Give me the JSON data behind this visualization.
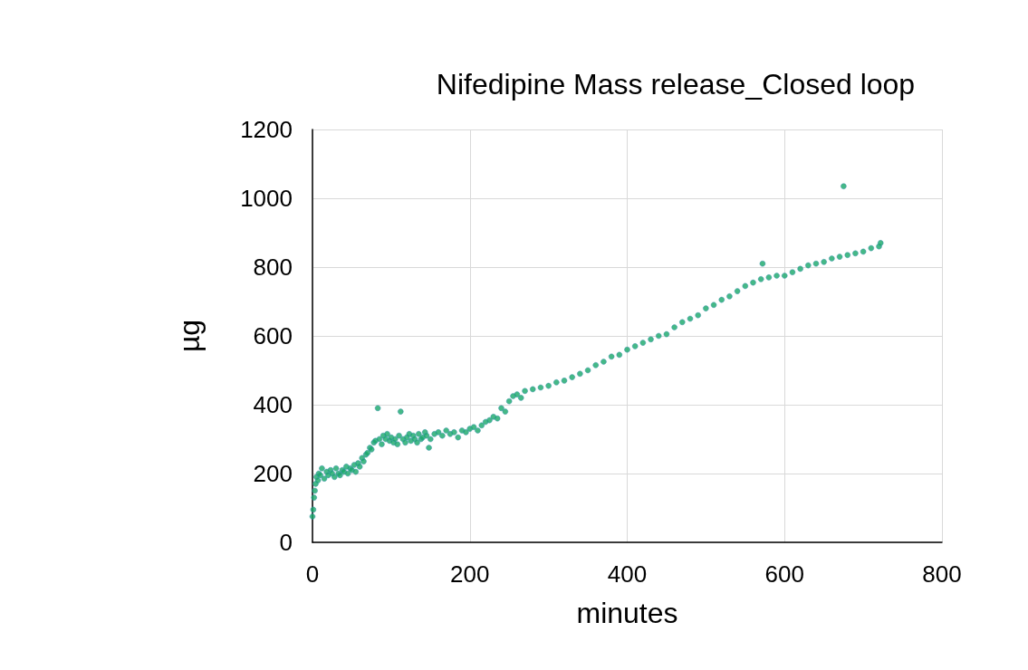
{
  "chart_data": {
    "type": "scatter",
    "title": "Nifedipine Mass release_Closed loop",
    "xlabel": "minutes",
    "ylabel": "µg",
    "x": [
      0,
      1,
      2,
      3,
      4,
      5,
      7,
      8,
      10,
      12,
      15,
      18,
      20,
      23,
      25,
      28,
      30,
      33,
      35,
      38,
      40,
      43,
      45,
      48,
      50,
      53,
      55,
      58,
      60,
      63,
      65,
      68,
      70,
      73,
      75,
      78,
      80,
      83,
      85,
      88,
      90,
      93,
      95,
      98,
      100,
      103,
      105,
      108,
      110,
      112,
      115,
      118,
      120,
      123,
      125,
      128,
      130,
      133,
      135,
      138,
      140,
      143,
      145,
      148,
      150,
      155,
      160,
      165,
      170,
      175,
      180,
      185,
      190,
      195,
      200,
      205,
      210,
      215,
      220,
      225,
      230,
      235,
      240,
      245,
      250,
      255,
      260,
      265,
      270,
      280,
      290,
      300,
      310,
      320,
      330,
      340,
      350,
      360,
      370,
      380,
      390,
      400,
      410,
      420,
      430,
      440,
      450,
      460,
      470,
      480,
      490,
      500,
      510,
      520,
      530,
      540,
      550,
      560,
      570,
      572,
      580,
      590,
      600,
      610,
      620,
      630,
      640,
      650,
      660,
      670,
      675,
      680,
      690,
      700,
      710,
      720,
      722
    ],
    "values": [
      75,
      95,
      130,
      150,
      170,
      190,
      180,
      200,
      195,
      215,
      185,
      205,
      195,
      210,
      200,
      190,
      215,
      200,
      195,
      210,
      205,
      220,
      200,
      215,
      210,
      225,
      205,
      230,
      220,
      245,
      235,
      255,
      260,
      275,
      270,
      290,
      295,
      390,
      300,
      285,
      310,
      300,
      315,
      295,
      305,
      290,
      300,
      285,
      310,
      380,
      300,
      290,
      305,
      315,
      295,
      310,
      300,
      290,
      315,
      300,
      305,
      320,
      310,
      275,
      300,
      315,
      320,
      310,
      325,
      315,
      320,
      305,
      325,
      320,
      330,
      335,
      325,
      340,
      350,
      355,
      365,
      360,
      390,
      380,
      410,
      425,
      430,
      420,
      440,
      445,
      450,
      455,
      465,
      470,
      480,
      490,
      500,
      515,
      525,
      540,
      545,
      560,
      570,
      580,
      590,
      600,
      605,
      625,
      640,
      650,
      660,
      680,
      690,
      705,
      715,
      730,
      745,
      755,
      765,
      810,
      770,
      775,
      775,
      785,
      795,
      805,
      810,
      815,
      825,
      830,
      1035,
      835,
      840,
      845,
      855,
      860,
      870
    ],
    "color": "#17a768",
    "marker": "circle",
    "xlim": [
      0,
      800
    ],
    "xticks": [
      0,
      200,
      400,
      600,
      800
    ],
    "ylim": [
      0,
      1200
    ],
    "yticks": [
      0,
      200,
      400,
      600,
      800,
      1000,
      1200
    ],
    "grid": true
  }
}
